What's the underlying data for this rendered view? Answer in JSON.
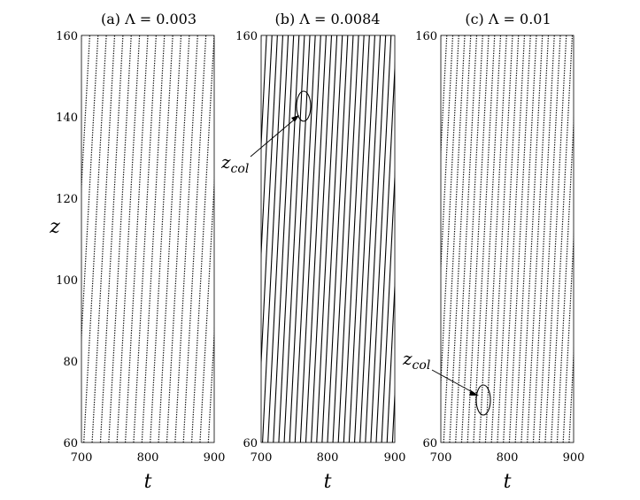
{
  "chart_data": [
    {
      "type": "scatter",
      "title": "(a) Λ = 0.003",
      "xlabel": "t",
      "ylabel": "z",
      "xlim": [
        700,
        900
      ],
      "ylim": [
        60,
        160
      ],
      "xticks": [
        "700",
        "800",
        "900"
      ],
      "yticks": [
        "60",
        "80",
        "100",
        "120",
        "140",
        "160"
      ],
      "grid": false,
      "trajectories": {
        "count": 16,
        "slope_dz_dt": 2.95,
        "z_at_t700": 60,
        "spacing_t": 12.5,
        "dotted": true
      },
      "annotation": null
    },
    {
      "type": "scatter",
      "title": "(b) Λ = 0.0084",
      "xlabel": "t",
      "ylabel": "",
      "xlim": [
        700,
        900
      ],
      "ylim": [
        60,
        160
      ],
      "xticks": [
        "700",
        "800",
        "900"
      ],
      "yticks": [
        "60",
        "160"
      ],
      "grid": false,
      "trajectories": {
        "count": 26,
        "slope_dz_dt": 3.3,
        "z_at_t700": 60,
        "spacing_t": 8.1,
        "dotted": false
      },
      "annotation": {
        "label": "z",
        "sub": "col",
        "t": 763,
        "z": 146
      }
    },
    {
      "type": "scatter",
      "title": "(c) Λ = 0.01",
      "xlabel": "t",
      "ylabel": "",
      "xlim": [
        700,
        900
      ],
      "ylim": [
        60,
        160
      ],
      "xticks": [
        "700",
        "800",
        "900"
      ],
      "yticks": [
        "60",
        "160"
      ],
      "grid": false,
      "trajectories": {
        "count": 24,
        "slope_dz_dt": 3.15,
        "z_at_t700": 60,
        "spacing_t": 9.0,
        "dotted": true
      },
      "annotation": {
        "label": "z",
        "sub": "col",
        "t": 764,
        "z": 72
      }
    }
  ]
}
